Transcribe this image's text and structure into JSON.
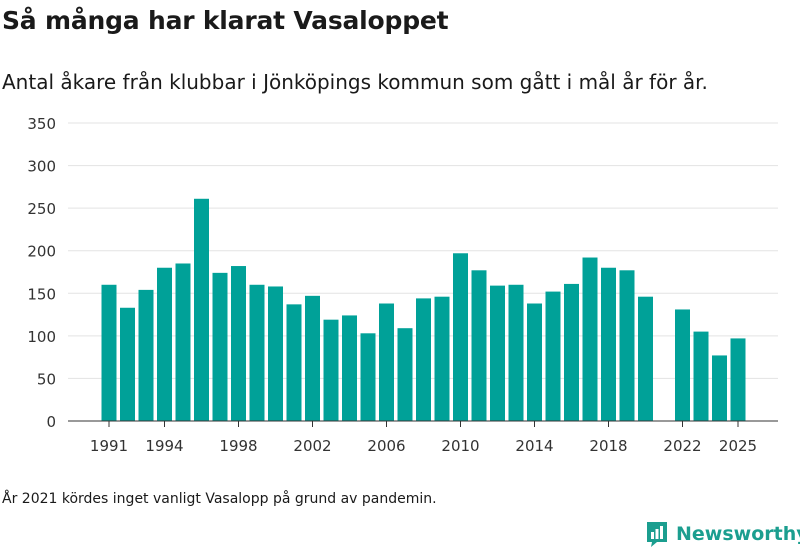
{
  "title": "Så många har klarat Vasaloppet",
  "subtitle": "Antal åkare från klubbar i Jönköpings kommun som gått i mål år för år.",
  "note": "År 2021 kördes inget vanligt Vasalopp på grund av pandemin.",
  "brand": {
    "name": "Newsworthy",
    "icon": "newsworthy-logo-icon",
    "color": "#1b9e8f"
  },
  "chart_data": {
    "type": "bar",
    "title": "Så många har klarat Vasaloppet",
    "xlabel": "",
    "ylabel": "",
    "bar_color": "#00a198",
    "ylim": [
      0,
      350
    ],
    "yticks": [
      0,
      50,
      100,
      150,
      200,
      250,
      300,
      350
    ],
    "xtick_labels": [
      "1991",
      "1994",
      "1998",
      "2002",
      "2006",
      "2010",
      "2014",
      "2018",
      "2022",
      "2025"
    ],
    "grid": true,
    "categories": [
      1991,
      1992,
      1993,
      1994,
      1995,
      1996,
      1997,
      1998,
      1999,
      2000,
      2001,
      2002,
      2003,
      2004,
      2005,
      2006,
      2007,
      2008,
      2009,
      2010,
      2011,
      2012,
      2013,
      2014,
      2015,
      2016,
      2017,
      2018,
      2019,
      2020,
      2021,
      2022,
      2023,
      2024,
      2025
    ],
    "values": [
      160,
      133,
      154,
      180,
      185,
      261,
      174,
      182,
      160,
      158,
      137,
      147,
      119,
      124,
      103,
      138,
      109,
      144,
      146,
      197,
      177,
      159,
      160,
      138,
      152,
      161,
      192,
      180,
      177,
      146,
      null,
      131,
      105,
      77,
      97
    ]
  }
}
